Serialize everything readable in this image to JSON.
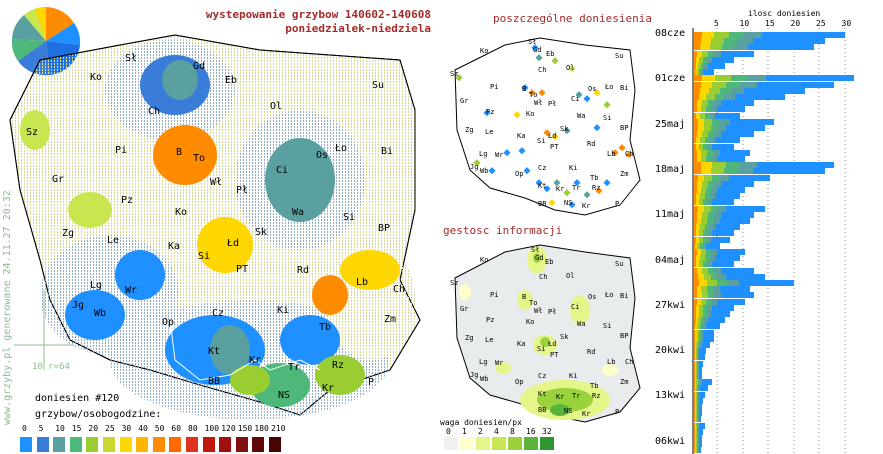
{
  "title_line1": "wystepowanie grzybow 140602-140608",
  "title_line2": "poniedzialek-niedziela",
  "side_text": "www.grzyby.pl generowane 24.11.27 20:32",
  "scale_label": "10 r=64",
  "report_count": "doniesien #120",
  "legend_title": "grzybow/osobogodzine:",
  "legend_values": [
    "0",
    "5",
    "10",
    "15",
    "20",
    "25",
    "30",
    "40",
    "50",
    "60",
    "80",
    "100",
    "120",
    "150",
    "180",
    "210"
  ],
  "legend_colors": [
    "#1e90ff",
    "#3a7dd8",
    "#5aa0a0",
    "#4db87a",
    "#9acd32",
    "#c8d830",
    "#ffd700",
    "#ffb400",
    "#ff8c00",
    "#ff6a00",
    "#e0301e",
    "#c0180c",
    "#a01010",
    "#801010",
    "#600808",
    "#480404"
  ],
  "subtitle_individual": "poszczególne doniesienia",
  "subtitle_density": "gestosc informacji",
  "weight_title": "waga doniesien/px",
  "weight_values": [
    "0",
    "1",
    "2",
    "4",
    "8",
    "16",
    "32"
  ],
  "weight_colors": [
    "#f0f0f0",
    "#ffffcc",
    "#e6f58a",
    "#c8e650",
    "#9ad23c",
    "#5ab43c",
    "#2e962e"
  ],
  "histogram_title": "ilosc doniesien",
  "histogram_ticks": [
    "5",
    "10",
    "15",
    "20",
    "25",
    "30"
  ],
  "weeks": [
    "08cze",
    "01cze",
    "25maj",
    "18maj",
    "11maj",
    "04maj",
    "27kwi",
    "20kwi",
    "13kwi",
    "06kwi"
  ],
  "regions_main": [
    {
      "id": "Sl",
      "t": "Sł"
    },
    {
      "id": "Gd",
      "t": "Gd"
    },
    {
      "id": "Ko",
      "t": "Ko"
    },
    {
      "id": "Eb",
      "t": "Eb"
    },
    {
      "id": "Su",
      "t": "Su"
    },
    {
      "id": "Ch",
      "t": "Ch"
    },
    {
      "id": "Ol",
      "t": "Ol"
    },
    {
      "id": "Sz",
      "t": "Sz"
    },
    {
      "id": "Pi",
      "t": "Pi"
    },
    {
      "id": "B",
      "t": "B"
    },
    {
      "id": "To",
      "t": "To"
    },
    {
      "id": "Os",
      "t": "Os"
    },
    {
      "id": "Lo",
      "t": "Ło"
    },
    {
      "id": "Bi",
      "t": "Bi"
    },
    {
      "id": "Ci",
      "t": "Ci"
    },
    {
      "id": "Gr",
      "t": "Gr"
    },
    {
      "id": "Wl",
      "t": "Wł"
    },
    {
      "id": "Pl",
      "t": "Pł"
    },
    {
      "id": "Pz",
      "t": "Pz"
    },
    {
      "id": "Ko2",
      "t": "Ko"
    },
    {
      "id": "Wa",
      "t": "Wa"
    },
    {
      "id": "Si",
      "t": "Si"
    },
    {
      "id": "Zg",
      "t": "Zg"
    },
    {
      "id": "Le",
      "t": "Le"
    },
    {
      "id": "Ka",
      "t": "Ka"
    },
    {
      "id": "Ld",
      "t": "Łd"
    },
    {
      "id": "Sk",
      "t": "Sk"
    },
    {
      "id": "BP",
      "t": "BP"
    },
    {
      "id": "Si2",
      "t": "Si"
    },
    {
      "id": "PT",
      "t": "PT"
    },
    {
      "id": "Rd",
      "t": "Rd"
    },
    {
      "id": "Lg",
      "t": "Lg"
    },
    {
      "id": "Wr",
      "t": "Wr"
    },
    {
      "id": "Lb",
      "t": "Lb"
    },
    {
      "id": "Ch2",
      "t": "Ch"
    },
    {
      "id": "Jg",
      "t": "Jg"
    },
    {
      "id": "Wb",
      "t": "Wb"
    },
    {
      "id": "Op",
      "t": "Op"
    },
    {
      "id": "Cz",
      "t": "Cz"
    },
    {
      "id": "Ki",
      "t": "Ki"
    },
    {
      "id": "Zm",
      "t": "Zm"
    },
    {
      "id": "Tb",
      "t": "Tb"
    },
    {
      "id": "Kt",
      "t": "Kt"
    },
    {
      "id": "Kr",
      "t": "Kr"
    },
    {
      "id": "Tr",
      "t": "Tr"
    },
    {
      "id": "Rz",
      "t": "Rz"
    },
    {
      "id": "BB",
      "t": "BB"
    },
    {
      "id": "NS",
      "t": "NS"
    },
    {
      "id": "Kr2",
      "t": "Kr"
    },
    {
      "id": "P",
      "t": "P"
    }
  ]
}
